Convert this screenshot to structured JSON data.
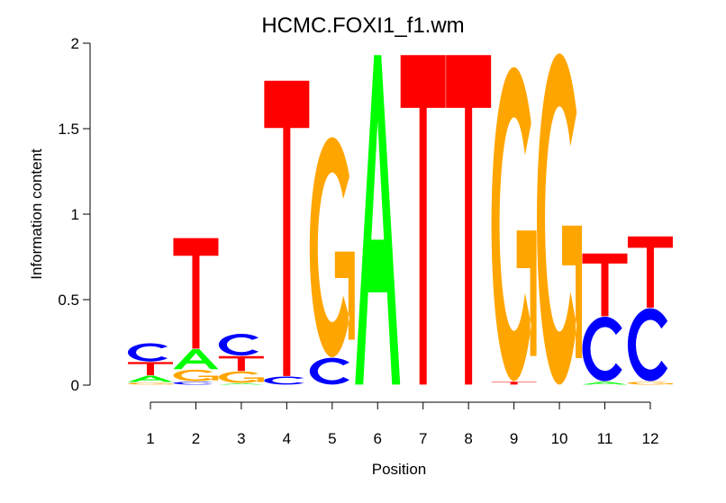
{
  "chart_data": {
    "type": "sequence-logo",
    "title": "HCMC.FOXI1_f1.wm",
    "xlabel": "Position",
    "ylabel": "Information content",
    "ylim": [
      0,
      2
    ],
    "yticks": [
      "0",
      "0.5",
      "1",
      "1.5",
      "2"
    ],
    "categories": [
      "1",
      "2",
      "3",
      "4",
      "5",
      "6",
      "7",
      "8",
      "9",
      "10",
      "11",
      "12"
    ],
    "colors": {
      "A": "#00ff00",
      "C": "#0000ff",
      "G": "#ffa500",
      "T": "#ff0000"
    },
    "stacks": [
      [
        [
          "G",
          0.015
        ],
        [
          "A",
          0.04
        ],
        [
          "T",
          0.08
        ],
        [
          "C",
          0.11
        ]
      ],
      [
        [
          "C",
          0.02
        ],
        [
          "G",
          0.07
        ],
        [
          "A",
          0.12
        ],
        [
          "T",
          0.65
        ]
      ],
      [
        [
          "A",
          0.01
        ],
        [
          "G",
          0.07
        ],
        [
          "T",
          0.09
        ],
        [
          "C",
          0.13
        ]
      ],
      [
        [
          "C",
          0.05
        ],
        [
          "T",
          1.73
        ]
      ],
      [
        [
          "C",
          0.16
        ],
        [
          "G",
          1.29
        ]
      ],
      [
        [
          "A",
          1.93
        ]
      ],
      [
        [
          "T",
          1.93
        ]
      ],
      [
        [
          "T",
          1.93
        ]
      ],
      [
        [
          "T",
          0.02
        ],
        [
          "G",
          1.84
        ]
      ],
      [
        [
          "G",
          1.94
        ]
      ],
      [
        [
          "A",
          0.02
        ],
        [
          "C",
          0.38
        ],
        [
          "T",
          0.37
        ]
      ],
      [
        [
          "G",
          0.02
        ],
        [
          "C",
          0.43
        ],
        [
          "T",
          0.42
        ]
      ]
    ]
  }
}
